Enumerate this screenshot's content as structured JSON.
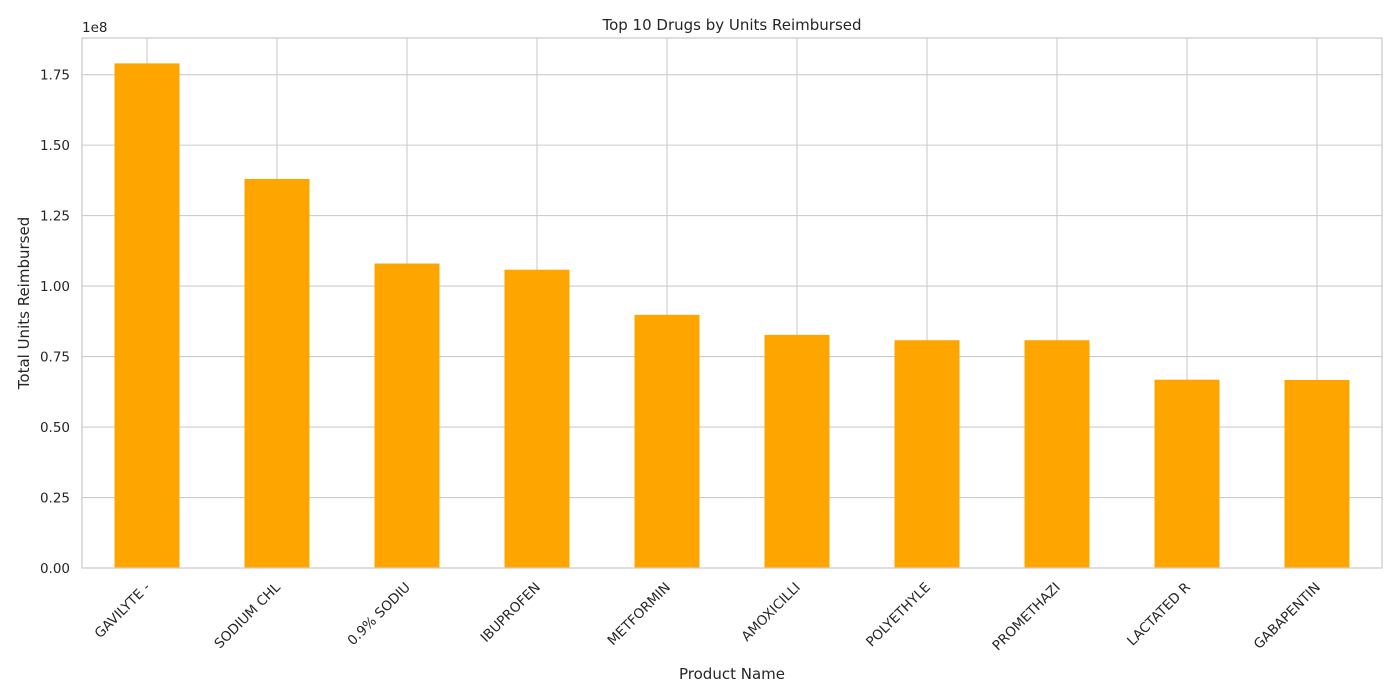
{
  "chart_data": {
    "type": "bar",
    "title": "Top 10 Drugs by Units Reimbursed",
    "xlabel": "Product Name",
    "ylabel": "Total Units Reimbursed",
    "offset_label": "1e8",
    "categories": [
      "GAVILYTE -",
      "SODIUM CHL",
      "0.9% SODIU",
      "IBUPROFEN",
      "METFORMIN",
      "AMOXICILLI",
      "POLYETHYLE",
      "PROMETHAZI",
      "LACTATED R",
      "GABAPENTIN"
    ],
    "values": [
      179000000,
      138000000,
      108000000,
      105800000,
      89800000,
      82700000,
      80800000,
      80800000,
      66800000,
      66700000
    ],
    "ylim": [
      0,
      188000000
    ],
    "yticks": [
      0,
      25000000,
      50000000,
      75000000,
      100000000,
      125000000,
      150000000,
      175000000
    ],
    "ytick_labels": [
      "0.00",
      "0.25",
      "0.50",
      "0.75",
      "1.00",
      "1.25",
      "1.50",
      "1.75"
    ],
    "bar_color": "#ffa500",
    "grid": true,
    "grid_color": "#cccccc",
    "legend": "none"
  }
}
